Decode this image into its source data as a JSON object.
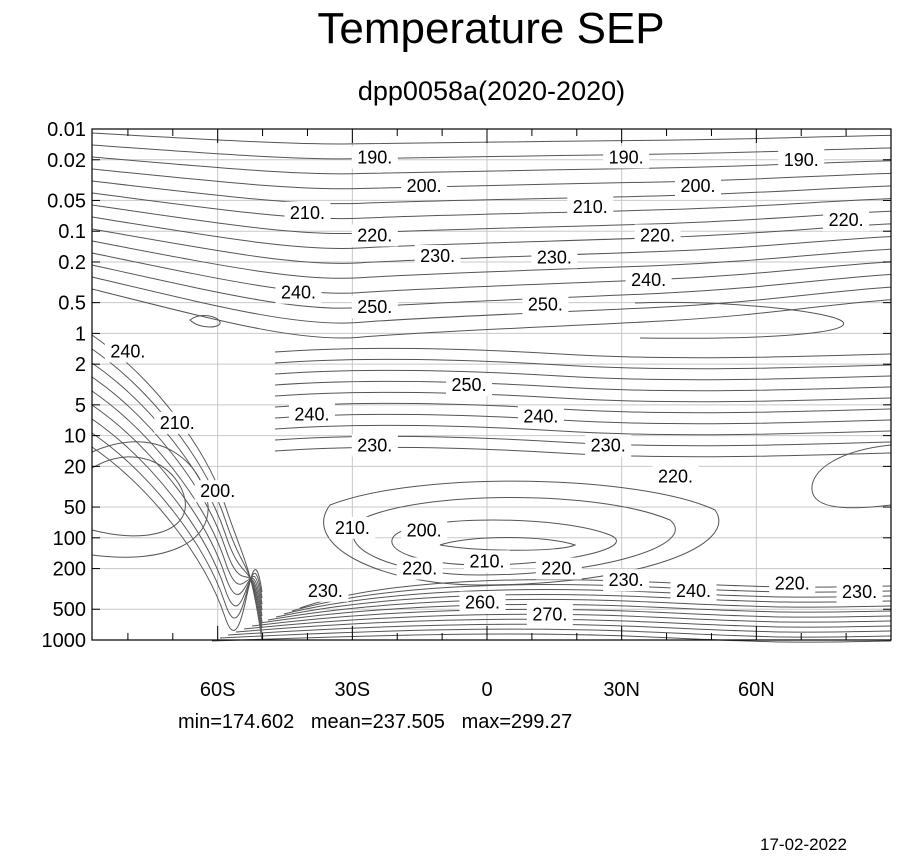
{
  "title": "Temperature SEP",
  "subtitle": "dpp0058a(2020-2020)",
  "stats": {
    "min_text": "min=174.602",
    "mean_text": "mean=237.505",
    "max_text": "max=299.27"
  },
  "date": "17-02-2022",
  "chart_data": {
    "type": "contour",
    "title": "Temperature SEP",
    "subtitle": "dpp0058a(2020-2020)",
    "x_axis": {
      "range": [
        -88,
        90
      ],
      "ticks": [
        -60,
        -30,
        0,
        30,
        60
      ],
      "tick_labels": [
        "60S",
        "30S",
        "0",
        "30N",
        "60N"
      ],
      "minor_ticks": [
        -80,
        -70,
        -50,
        -40,
        -20,
        -10,
        10,
        20,
        40,
        50,
        70,
        80
      ]
    },
    "y_axis": {
      "scale": "log",
      "reversed": true,
      "range": [
        0.01,
        1000
      ],
      "ticks": [
        0.01,
        0.02,
        0.05,
        0.1,
        0.2,
        0.5,
        1,
        2,
        5,
        10,
        20,
        50,
        100,
        200,
        500,
        1000
      ],
      "tick_labels": [
        "0.01",
        "0.02",
        "0.05",
        "0.1",
        "0.2",
        "0.5",
        "1",
        "2",
        "5",
        "10",
        "20",
        "50",
        "100",
        "200",
        "500",
        "1000"
      ]
    },
    "grid": true,
    "line_color": "#555555",
    "grid_color": "#c8c8c8",
    "contour_labels": [
      {
        "text": "190.",
        "lat": -25,
        "p": 0.019
      },
      {
        "text": "190.",
        "lat": 31,
        "p": 0.019
      },
      {
        "text": "190.",
        "lat": 70,
        "p": 0.02
      },
      {
        "text": "200.",
        "lat": -14,
        "p": 0.036
      },
      {
        "text": "200.",
        "lat": 47,
        "p": 0.036
      },
      {
        "text": "210.",
        "lat": -40,
        "p": 0.066
      },
      {
        "text": "210.",
        "lat": 23,
        "p": 0.058
      },
      {
        "text": "220.",
        "lat": -25,
        "p": 0.11
      },
      {
        "text": "220.",
        "lat": 38,
        "p": 0.11
      },
      {
        "text": "220.",
        "lat": 80,
        "p": 0.078
      },
      {
        "text": "230.",
        "lat": -11,
        "p": 0.175
      },
      {
        "text": "230.",
        "lat": 15,
        "p": 0.18
      },
      {
        "text": "240.",
        "lat": -42,
        "p": 0.4
      },
      {
        "text": "240.",
        "lat": 36,
        "p": 0.3
      },
      {
        "text": "250.",
        "lat": -25,
        "p": 0.55
      },
      {
        "text": "250.",
        "lat": 13,
        "p": 0.52
      },
      {
        "text": "240.",
        "lat": -80,
        "p": 1.5
      },
      {
        "text": "250.",
        "lat": -4,
        "p": 3.2
      },
      {
        "text": "240.",
        "lat": -39,
        "p": 6.2
      },
      {
        "text": "240.",
        "lat": 12,
        "p": 6.5
      },
      {
        "text": "210.",
        "lat": -69,
        "p": 7.5
      },
      {
        "text": "230.",
        "lat": -25,
        "p": 12.5
      },
      {
        "text": "230.",
        "lat": 27,
        "p": 12.5
      },
      {
        "text": "220.",
        "lat": 42,
        "p": 25
      },
      {
        "text": "200.",
        "lat": -60,
        "p": 35
      },
      {
        "text": "210.",
        "lat": -30,
        "p": 80
      },
      {
        "text": "200.",
        "lat": -14,
        "p": 85
      },
      {
        "text": "210.",
        "lat": 0,
        "p": 170
      },
      {
        "text": "220.",
        "lat": -15,
        "p": 200
      },
      {
        "text": "220.",
        "lat": 16,
        "p": 200
      },
      {
        "text": "230.",
        "lat": 31,
        "p": 260
      },
      {
        "text": "230.",
        "lat": -36,
        "p": 330
      },
      {
        "text": "240.",
        "lat": 46,
        "p": 330
      },
      {
        "text": "220.",
        "lat": 68,
        "p": 280
      },
      {
        "text": "230.",
        "lat": 83,
        "p": 340
      },
      {
        "text": "260.",
        "lat": -1,
        "p": 430
      },
      {
        "text": "270.",
        "lat": 14,
        "p": 560
      }
    ]
  }
}
